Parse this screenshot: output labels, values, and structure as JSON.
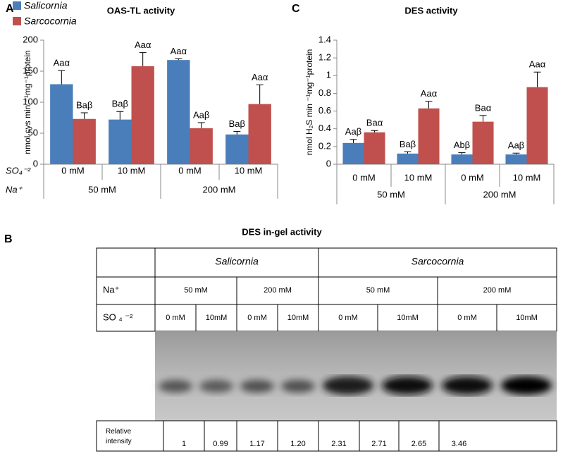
{
  "chart_data": [
    {
      "type": "bar",
      "panel": "A",
      "title": "OAS-TL activity",
      "ylabel": "nmol cys min ⁻¹mg⁻¹protein",
      "categories": [
        "0 mM",
        "10 mM",
        "0 mM",
        "10 mM"
      ],
      "groups": [
        "50 mM",
        "200 mM"
      ],
      "row_labels": [
        "SO₄⁻²",
        "Na⁺"
      ],
      "series": [
        {
          "name": "Salicornia",
          "color": "#4a7ebb",
          "values": [
            129,
            72,
            168,
            48
          ],
          "errors": [
            22,
            13,
            2,
            5
          ],
          "annotations": [
            "Aaα",
            "Baβ",
            "Aaα",
            "Baβ"
          ]
        },
        {
          "name": "Sarcocornia",
          "color": "#c0504d",
          "values": [
            73,
            158,
            58,
            97
          ],
          "errors": [
            10,
            22,
            9,
            31
          ],
          "annotations": [
            "Baβ",
            "Aaα",
            "Aaβ",
            "Aaα"
          ]
        }
      ],
      "ylim": [
        0,
        200
      ],
      "yticks": [
        0,
        50,
        100,
        150,
        200
      ],
      "legend": "top-left",
      "grid": false
    },
    {
      "type": "bar",
      "panel": "C",
      "title": "DES activity",
      "ylabel": "nmol H₂S min ⁻¹mg⁻¹protein",
      "categories": [
        "0 mM",
        "10 mM",
        "0 mM",
        "10 mM"
      ],
      "groups": [
        "50 mM",
        "200 mM"
      ],
      "series": [
        {
          "name": "Salicornia",
          "color": "#4a7ebb",
          "values": [
            0.24,
            0.12,
            0.11,
            0.11
          ],
          "errors": [
            0.04,
            0.02,
            0.02,
            0.015
          ],
          "annotations": [
            "Aaβ",
            "Baβ",
            "Abβ",
            "Aaβ"
          ]
        },
        {
          "name": "Sarcocornia",
          "color": "#c0504d",
          "values": [
            0.36,
            0.63,
            0.48,
            0.87
          ],
          "errors": [
            0.02,
            0.08,
            0.07,
            0.17
          ],
          "annotations": [
            "Baα",
            "Aaα",
            "Baα",
            "Aaα"
          ]
        }
      ],
      "ylim": [
        0,
        1.4
      ],
      "yticks": [
        0,
        0.2,
        0.4,
        0.6,
        0.8,
        1,
        1.2,
        1.4
      ],
      "grid": false
    }
  ],
  "gel_panel": {
    "panel": "B",
    "title": "DES in-gel activity",
    "species": [
      "Salicornia",
      "Sarcocornia"
    ],
    "na_label": "Na⁺",
    "na": [
      "50 mM",
      "200 mM",
      "50 mM",
      "200 mM"
    ],
    "so4_label": "SO ₄ ⁻²",
    "so4": [
      "0 mM",
      "10mM",
      "0 mM",
      "10mM",
      "0 mM",
      "10mM",
      "0 mM",
      "10mM"
    ],
    "intensity_label": "Relative intensity",
    "intensity": [
      "1",
      "0.99",
      "1.17",
      "1.20",
      "2.31",
      "2.71",
      "2.65",
      "3.46"
    ]
  }
}
